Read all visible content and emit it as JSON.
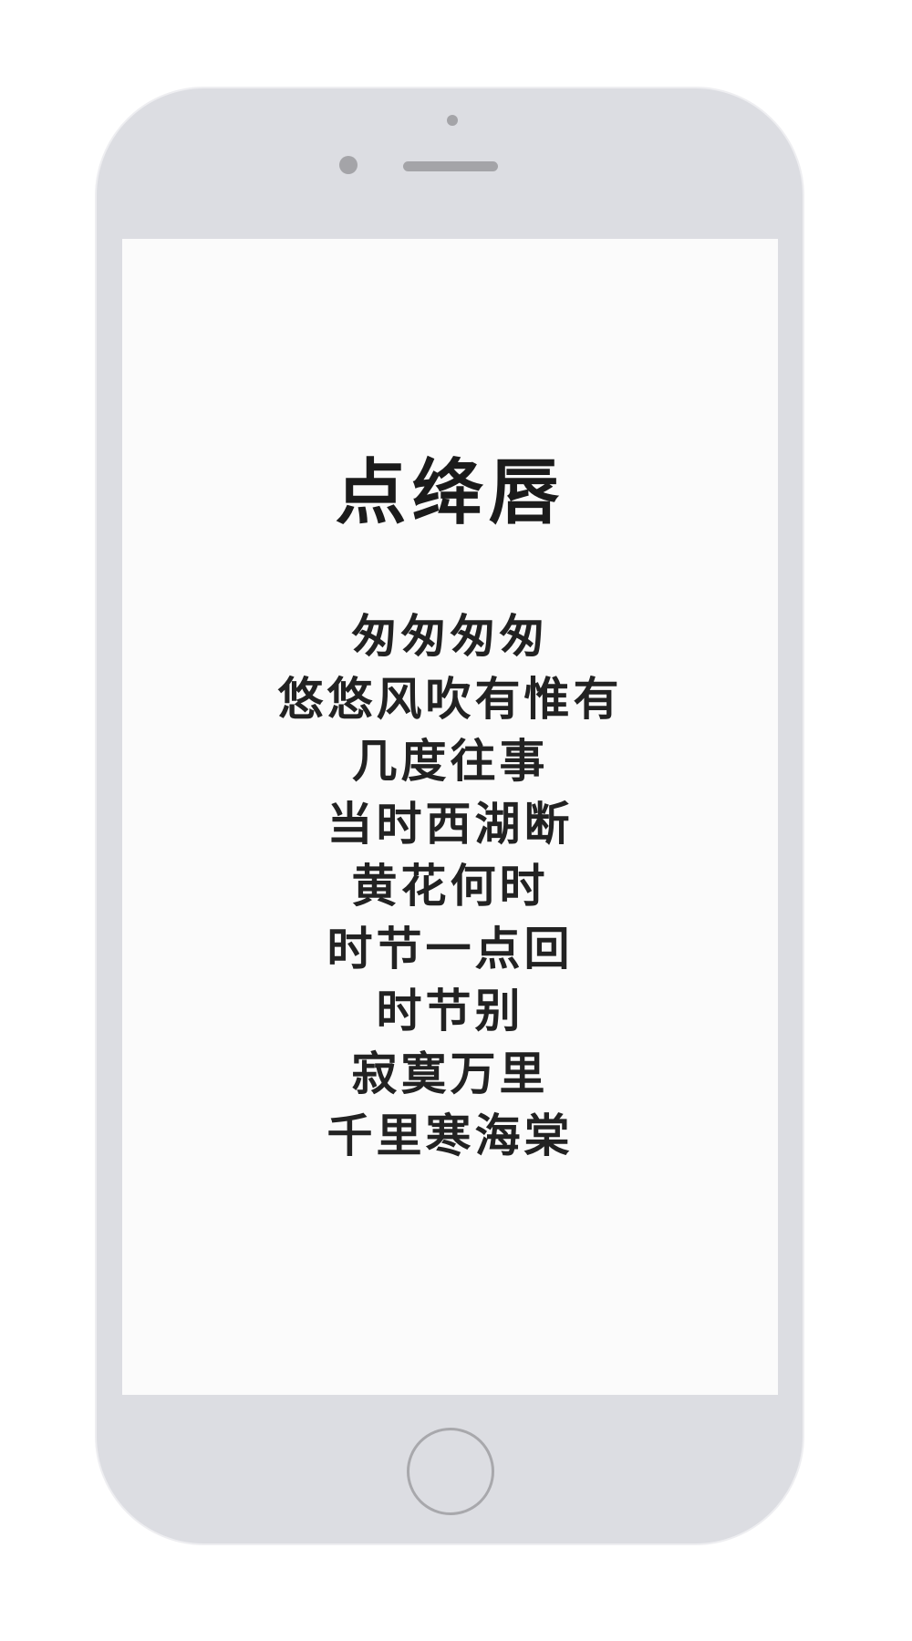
{
  "poem": {
    "title": "点绛唇",
    "lines": [
      "匆匆匆匆",
      "悠悠风吹有惟有",
      "几度往事",
      "当时西湖断",
      "黄花何时",
      "时节一点回",
      "时节别",
      "寂寞万里",
      "千里寒海棠"
    ]
  },
  "colors": {
    "phone_body": "#dcdde2",
    "screen_background": "#fbfbfb",
    "text": "#222222",
    "hardware_accent": "#a4a4a8"
  }
}
